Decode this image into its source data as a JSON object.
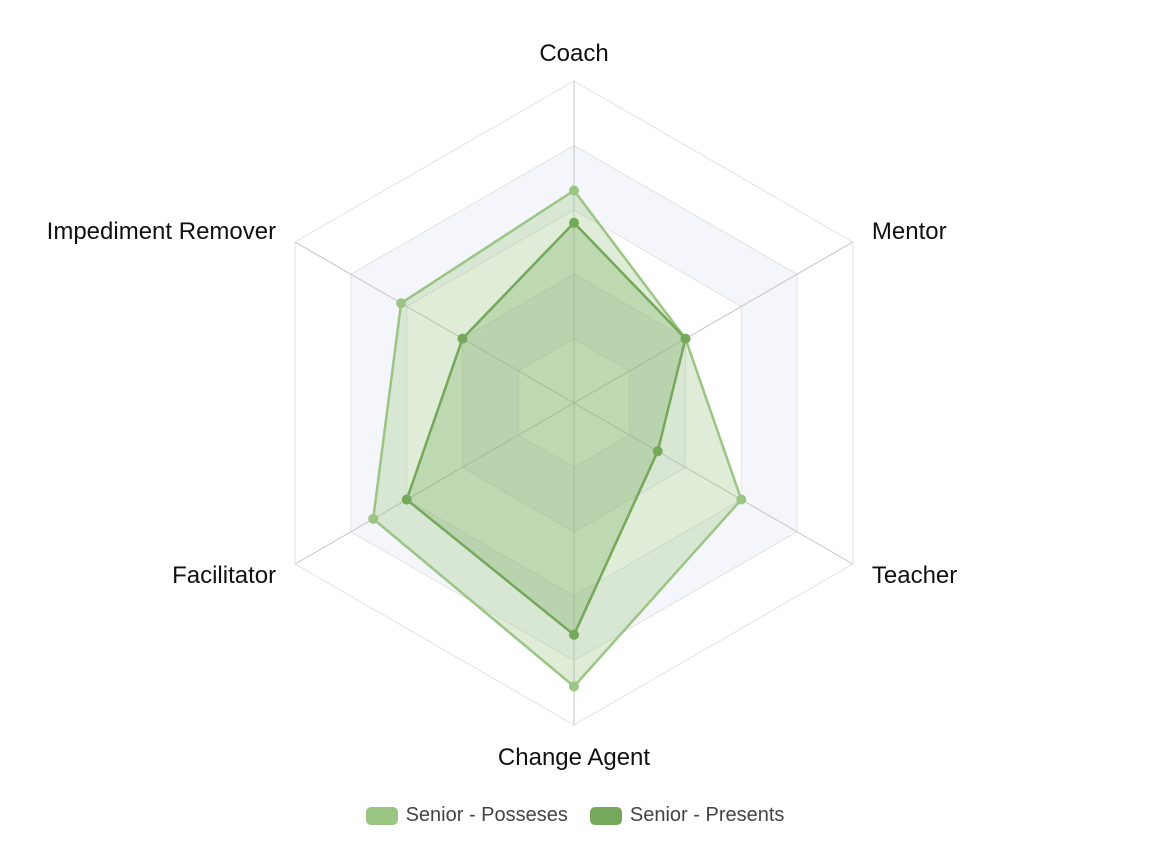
{
  "chart_data": {
    "type": "radar",
    "axes": [
      "Coach",
      "Mentor",
      "Teacher",
      "Change Agent",
      "Facilitator",
      "Impediment Remover"
    ],
    "rmax": 5,
    "rings": 5,
    "series": [
      {
        "name": "Senior - Posseses",
        "values": [
          3.3,
          2.0,
          3.0,
          4.4,
          3.6,
          3.1
        ],
        "stroke": "#9ac583",
        "fill": "#9ac583",
        "fill_opacity": 0.32
      },
      {
        "name": "Senior - Presents",
        "values": [
          2.8,
          2.0,
          1.5,
          3.6,
          3.0,
          2.0
        ],
        "stroke": "#74a85a",
        "fill": "#74a85a",
        "fill_opacity": 0.3
      }
    ],
    "band_color": "#f5f6fb",
    "grid_color": "#e3e3e3",
    "spoke_color": "#c4c4c4",
    "legend_position": "bottom"
  }
}
